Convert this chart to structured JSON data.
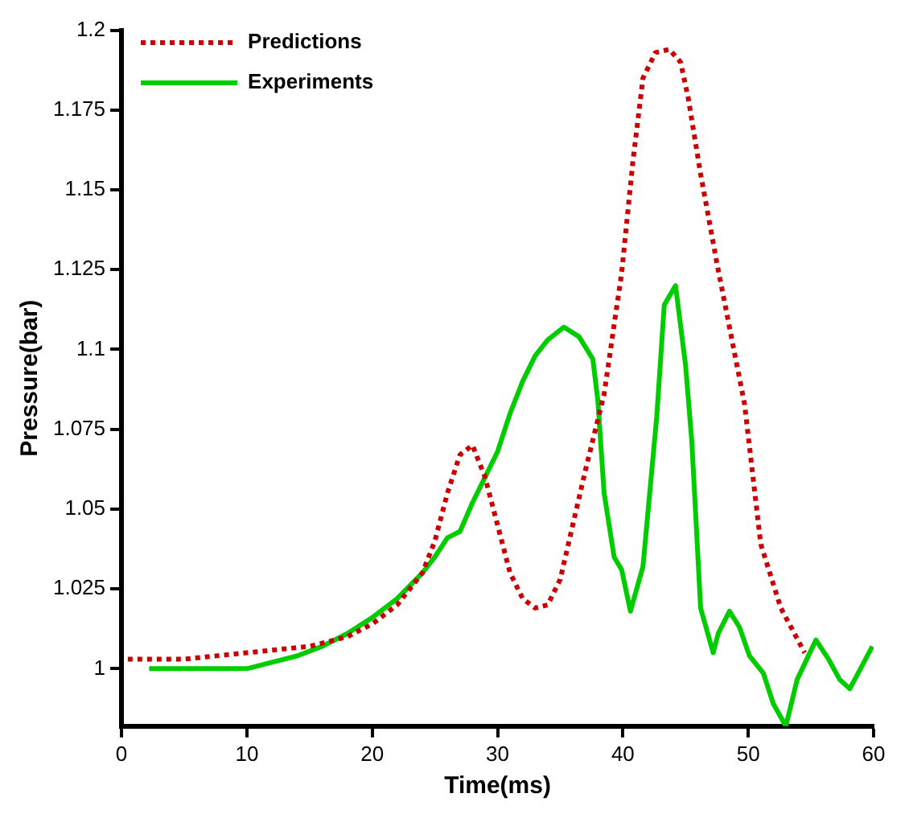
{
  "chart_data": {
    "type": "line",
    "xlabel": "Time(ms)",
    "ylabel": "Pressure(bar)",
    "xlim": [
      0,
      60
    ],
    "xticks": [
      0,
      10,
      20,
      30,
      40,
      50,
      60
    ],
    "ylim": [
      0.982,
      1.2
    ],
    "yticks": [
      1,
      1.025,
      1.05,
      1.075,
      1.1,
      1.125,
      1.15,
      1.175,
      1.2
    ],
    "grid": false,
    "legend": "top left",
    "marker": "none",
    "series": [
      {
        "name": "Predictions",
        "color": "#cc0000",
        "line_style": "dotted",
        "x": [
          0.5,
          5,
          10,
          15,
          18,
          20,
          22,
          24,
          25,
          26,
          27,
          28,
          29,
          30,
          31,
          32,
          33,
          34,
          35,
          36,
          37,
          38.5,
          39.9,
          40.8,
          41.6,
          42.6,
          43.7,
          44.6,
          45.2,
          46.2,
          47.5,
          48.6,
          49.7,
          51,
          52.6,
          54.5
        ],
        "values": [
          1.003,
          1.003,
          1.005,
          1.007,
          1.01,
          1.014,
          1.02,
          1.03,
          1.04,
          1.055,
          1.067,
          1.07,
          1.06,
          1.045,
          1.03,
          1.022,
          1.019,
          1.02,
          1.028,
          1.045,
          1.062,
          1.086,
          1.124,
          1.159,
          1.185,
          1.193,
          1.194,
          1.19,
          1.179,
          1.155,
          1.127,
          1.105,
          1.083,
          1.039,
          1.019,
          1.005
        ]
      },
      {
        "name": "Experiments",
        "color": "#00cc00",
        "line_style": "solid",
        "x": [
          2.2,
          4,
          6,
          8,
          10,
          12,
          14,
          16,
          18,
          20,
          22,
          24,
          25,
          26,
          27,
          28,
          29,
          30,
          31,
          32,
          33,
          34,
          35.3,
          36.5,
          37.6,
          38,
          38.5,
          39.3,
          39.9,
          40.6,
          41.6,
          42.7,
          43.3,
          44.2,
          45,
          45.5,
          46.2,
          47.2,
          47.6,
          48.5,
          49.3,
          50.1,
          51.2,
          52,
          53,
          53.9,
          55.4,
          56.4,
          57.3,
          58.1,
          59.9
        ],
        "values": [
          1.0,
          1.0,
          1.0,
          1.0,
          1.0,
          1.002,
          1.004,
          1.007,
          1.011,
          1.016,
          1.022,
          1.03,
          1.035,
          1.041,
          1.043,
          1.052,
          1.06,
          1.068,
          1.08,
          1.09,
          1.098,
          1.103,
          1.107,
          1.104,
          1.097,
          1.084,
          1.055,
          1.035,
          1.031,
          1.018,
          1.032,
          1.079,
          1.114,
          1.12,
          1.095,
          1.071,
          1.019,
          1.005,
          1.011,
          1.018,
          1.013,
          1.004,
          0.9986,
          0.989,
          0.982,
          0.9966,
          1.009,
          1.003,
          0.9966,
          0.9937,
          1.007
        ]
      }
    ]
  }
}
